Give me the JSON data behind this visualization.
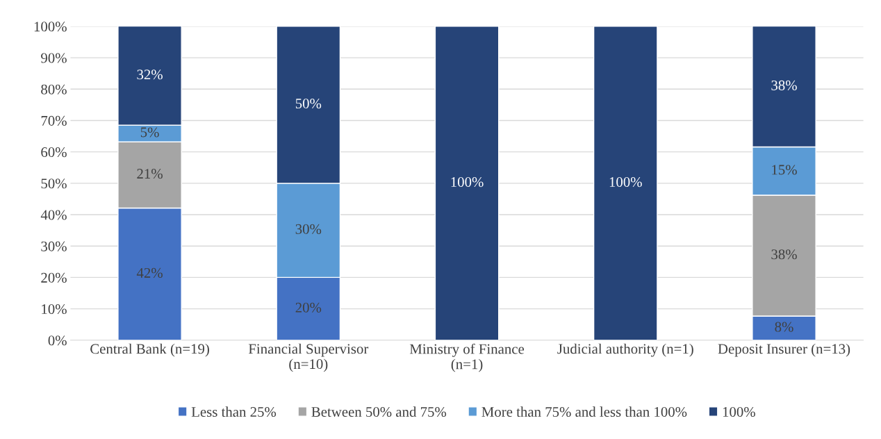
{
  "chart_data": {
    "type": "bar",
    "stacked": true,
    "categories": [
      "Central Bank (n=19)",
      "Financial Supervisor\n(n=10)",
      "Ministry of Finance\n(n=1)",
      "Judicial authority (n=1)",
      "Deposit Insurer (n=13)"
    ],
    "series": [
      {
        "name": "Less than 25%",
        "color": "#4472c4",
        "values": [
          42.1,
          20,
          null,
          null,
          7.7
        ],
        "value_labels": [
          "42%",
          "20%",
          null,
          null,
          "8%"
        ]
      },
      {
        "name": "Between 50% and 75%",
        "color": "#a5a5a5",
        "values": [
          21.1,
          null,
          null,
          null,
          38.5
        ],
        "value_labels": [
          "21%",
          null,
          null,
          null,
          "38%"
        ]
      },
      {
        "name": "More than 75% and less than 100%",
        "color": "#5b9bd5",
        "values": [
          5.3,
          30,
          null,
          null,
          15.4
        ],
        "value_labels": [
          "5%",
          "30%",
          null,
          null,
          "15%"
        ]
      },
      {
        "name": "100%",
        "color": "#264478",
        "values": [
          31.6,
          50,
          100,
          100,
          38.5
        ],
        "value_labels": [
          "32%",
          "50%",
          "100%",
          "100%",
          "38%"
        ]
      }
    ],
    "ylim": [
      0,
      100
    ],
    "yticks": [
      {
        "value": 0,
        "label": "0%"
      },
      {
        "value": 10,
        "label": "10%"
      },
      {
        "value": 20,
        "label": "20%"
      },
      {
        "value": 30,
        "label": "30%"
      },
      {
        "value": 40,
        "label": "40%"
      },
      {
        "value": 50,
        "label": "50%"
      },
      {
        "value": 60,
        "label": "60%"
      },
      {
        "value": 70,
        "label": "70%"
      },
      {
        "value": 80,
        "label": "80%"
      },
      {
        "value": 90,
        "label": "90%"
      },
      {
        "value": 100,
        "label": "100%"
      }
    ],
    "grid": "y",
    "legend": "bottom"
  }
}
